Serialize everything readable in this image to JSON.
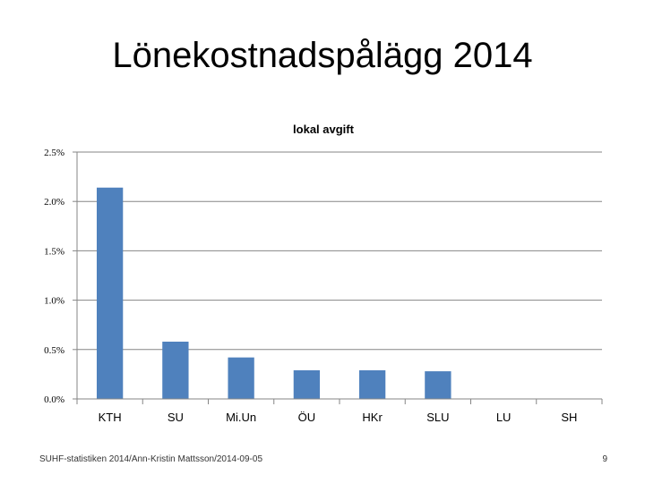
{
  "slide": {
    "title": "Lönekostnadspålägg 2014",
    "footer": "SUHF-statistiken 2014/Ann-Kristin Mattsson/2014-09-05",
    "page_number": "9"
  },
  "chart_data": {
    "type": "bar",
    "title": "lokal avgift",
    "xlabel": "",
    "ylabel": "",
    "categories": [
      "KTH",
      "SU",
      "Mi.Un",
      "ÖU",
      "HKr",
      "SLU",
      "LU",
      "SH"
    ],
    "values": [
      0.0214,
      0.0058,
      0.0042,
      0.0029,
      0.0029,
      0.0028,
      0,
      0
    ],
    "ylim": [
      0,
      0.025
    ],
    "yticks": [
      0,
      0.005,
      0.01,
      0.015,
      0.02,
      0.025
    ],
    "ytick_labels": [
      "0.0%",
      "0.5%",
      "1.0%",
      "1.5%",
      "2.0%",
      "2.5%"
    ],
    "grid": true,
    "legend": "none",
    "bar_color": "#4f81bd",
    "grid_color": "#868686"
  }
}
